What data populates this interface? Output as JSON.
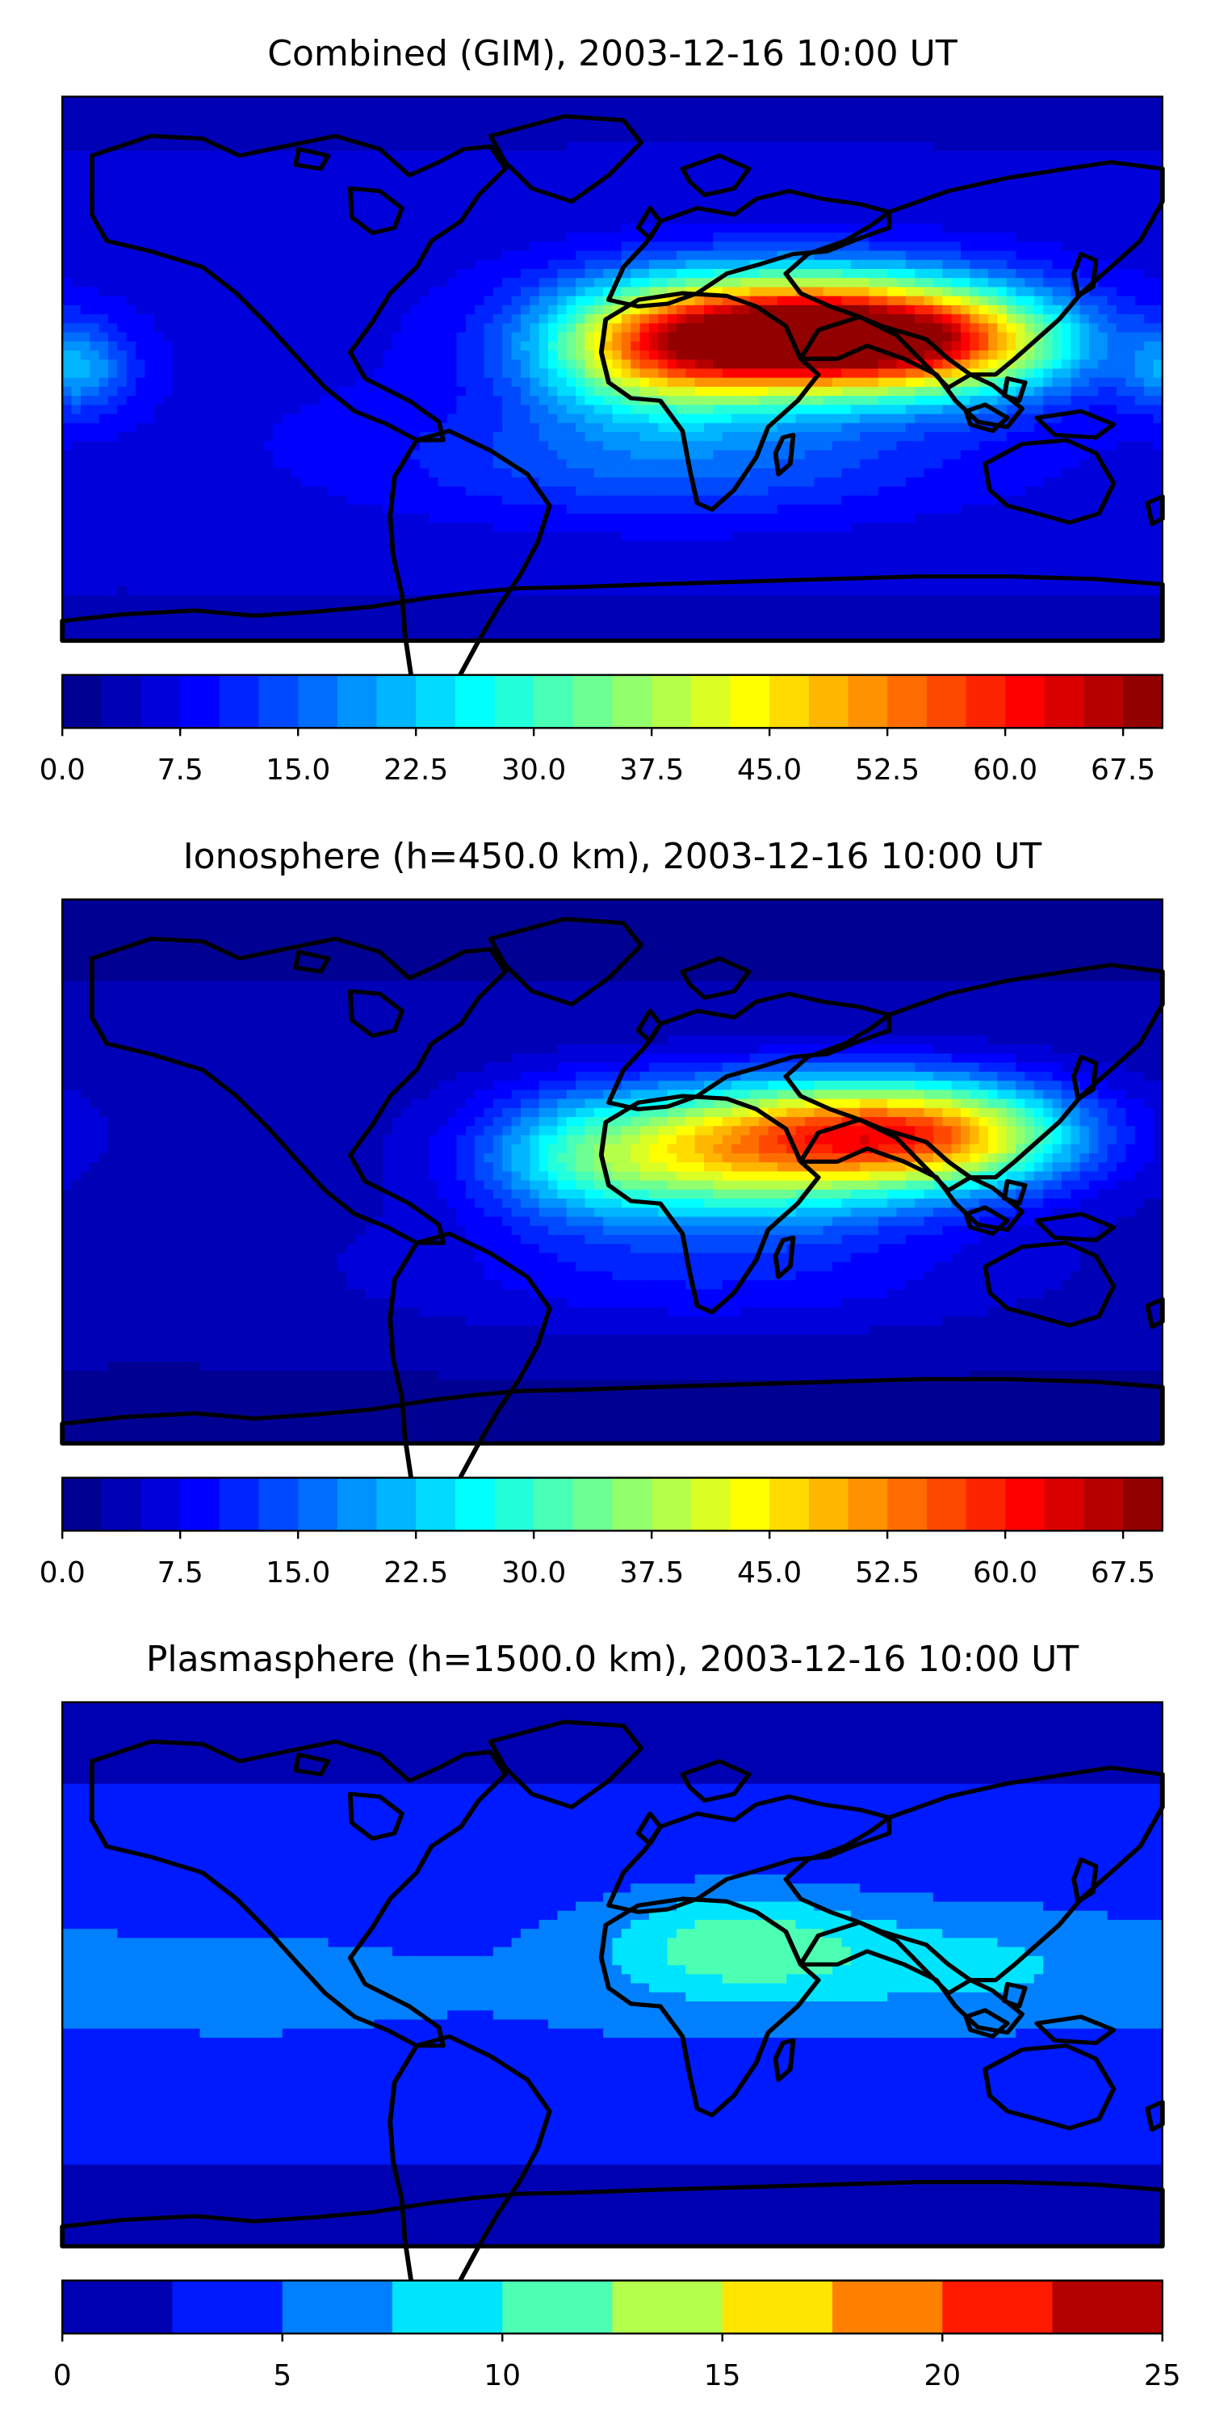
{
  "figure": {
    "background": "#ffffff"
  },
  "chart_data": [
    {
      "type": "heatmap",
      "title": "Combined (GIM), 2003-12-16 10:00 UT",
      "colormap": "jet",
      "colorbar": {
        "min": 0.0,
        "max": 70.0,
        "levels": 28,
        "tick_values": [
          0.0,
          7.5,
          15.0,
          22.5,
          30.0,
          37.5,
          45.0,
          52.5,
          60.0,
          67.5
        ],
        "tick_labels": [
          "0.0",
          "7.5",
          "15.0",
          "22.5",
          "30.0",
          "37.5",
          "45.0",
          "52.5",
          "60.0",
          "67.5"
        ]
      },
      "features": [
        {
          "lon": 45,
          "lat": 10,
          "value": 52,
          "sigma_lon": 38,
          "sigma_lat": 14
        },
        {
          "lon": 80,
          "lat": 12,
          "value": 44,
          "sigma_lon": 36,
          "sigma_lat": 13
        },
        {
          "lon": 115,
          "lat": 8,
          "value": 32,
          "sigma_lon": 28,
          "sigma_lat": 12
        },
        {
          "lon": 10,
          "lat": 5,
          "value": 26,
          "sigma_lon": 25,
          "sigma_lat": 15
        },
        {
          "lon": -175,
          "lat": 0,
          "value": 20,
          "sigma_lon": 12,
          "sigma_lat": 10
        },
        {
          "lon": 20,
          "lat": -30,
          "value": 16,
          "sigma_lon": 60,
          "sigma_lat": 14
        }
      ],
      "background_value": 7
    },
    {
      "type": "heatmap",
      "title": "Ionosphere  (h=450.0 km), 2003-12-16 10:00 UT",
      "colormap": "jet",
      "colorbar": {
        "min": 0.0,
        "max": 70.0,
        "levels": 28,
        "tick_values": [
          0.0,
          7.5,
          15.0,
          22.5,
          30.0,
          37.5,
          45.0,
          52.5,
          60.0,
          67.5
        ],
        "tick_labels": [
          "0.0",
          "7.5",
          "15.0",
          "22.5",
          "30.0",
          "37.5",
          "45.0",
          "52.5",
          "60.0",
          "67.5"
        ]
      },
      "features": [
        {
          "lon": 45,
          "lat": 5,
          "value": 38,
          "sigma_lon": 42,
          "sigma_lat": 15
        },
        {
          "lon": 85,
          "lat": 15,
          "value": 33,
          "sigma_lon": 40,
          "sigma_lat": 12
        },
        {
          "lon": 115,
          "lat": 10,
          "value": 24,
          "sigma_lon": 28,
          "sigma_lat": 12
        },
        {
          "lon": -10,
          "lat": 5,
          "value": 18,
          "sigma_lon": 25,
          "sigma_lat": 15
        },
        {
          "lon": 30,
          "lat": -35,
          "value": 10,
          "sigma_lon": 70,
          "sigma_lat": 14
        }
      ],
      "background_value": 4
    },
    {
      "type": "heatmap",
      "title": "Plasmasphere (h=1500.0 km), 2003-12-16 10:00 UT",
      "colormap": "jet",
      "colorbar": {
        "min": 0,
        "max": 25,
        "levels": 10,
        "tick_values": [
          0,
          5,
          10,
          15,
          20,
          25
        ],
        "tick_labels": [
          "0",
          "5",
          "10",
          "15",
          "20",
          "25"
        ]
      },
      "features": [
        {
          "lon": 40,
          "lat": 10,
          "value": 11,
          "sigma_lon": 30,
          "sigma_lat": 12
        },
        {
          "lon": 110,
          "lat": 3,
          "value": 8,
          "sigma_lon": 40,
          "sigma_lat": 13
        },
        {
          "lon": -120,
          "lat": -5,
          "value": 5.5,
          "sigma_lon": 70,
          "sigma_lat": 20
        },
        {
          "lon": -60,
          "lat": -10,
          "value": 4,
          "sigma_lon": 25,
          "sigma_lat": 15
        },
        {
          "lon": 20,
          "lat": -10,
          "value": 5,
          "sigma_lon": 40,
          "sigma_lat": 16
        }
      ],
      "background_value": 4
    }
  ]
}
